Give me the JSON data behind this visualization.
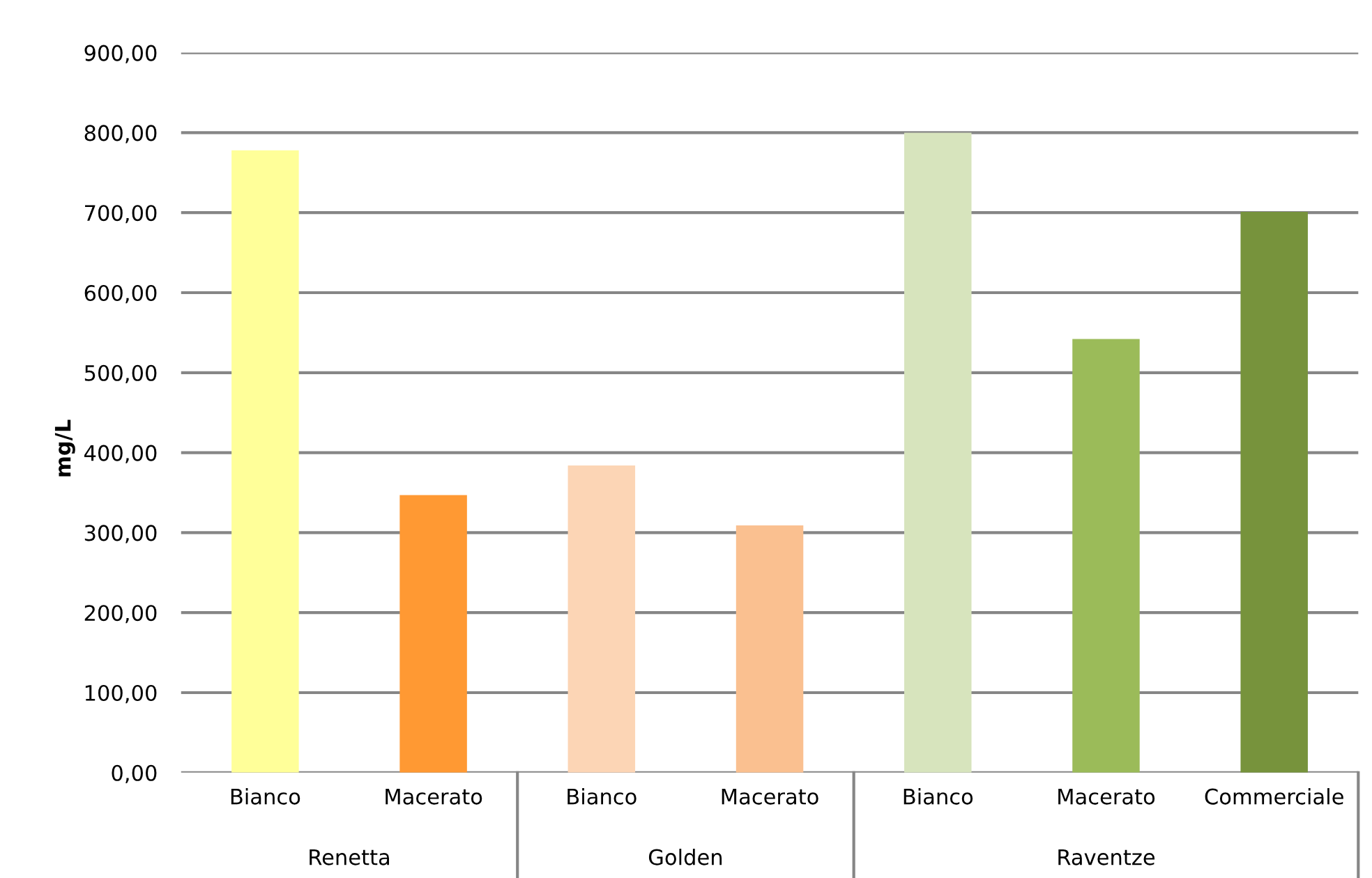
{
  "chart_data": {
    "type": "bar",
    "ylabel": "mg/L",
    "categories": [
      "Bianco",
      "Macerato",
      "Bianco",
      "Macerato",
      "Bianco",
      "Macerato",
      "Commerciale"
    ],
    "values": [
      778,
      347,
      384,
      309,
      800,
      542,
      701
    ],
    "colors": [
      "#ffff99",
      "#ff9933",
      "#fcd5b5",
      "#fac090",
      "#d7e4bd",
      "#9bbb59",
      "#77933c"
    ],
    "ylim": [
      0,
      900
    ],
    "yticks": [
      {
        "value": 0,
        "label": "0,00"
      },
      {
        "value": 100,
        "label": "100,00"
      },
      {
        "value": 200,
        "label": "200,00"
      },
      {
        "value": 300,
        "label": "300,00"
      },
      {
        "value": 400,
        "label": "400,00"
      },
      {
        "value": 500,
        "label": "500,00"
      },
      {
        "value": 600,
        "label": "600,00"
      },
      {
        "value": 700,
        "label": "700,00"
      },
      {
        "value": 800,
        "label": "800,00"
      },
      {
        "value": 900,
        "label": "900,00"
      }
    ],
    "grid": "y",
    "annotations": [
      "Renetta",
      "Golden",
      "Raventze"
    ]
  }
}
